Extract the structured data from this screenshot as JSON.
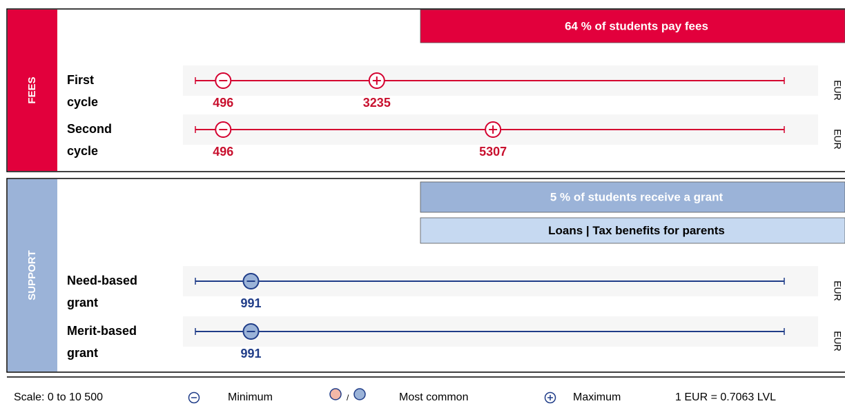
{
  "scale": {
    "min": 0,
    "max": 10500
  },
  "sections": [
    {
      "label": "FEES",
      "color": "#e2003c",
      "mark_color": "#d4002f",
      "number_color": "#c8102e",
      "filled": false,
      "banners": [
        {
          "text": "64 % of students pay fees",
          "fill": "#e2003c",
          "text_color": "#ffffff"
        }
      ],
      "rows": [
        {
          "label": [
            "First",
            "cycle"
          ],
          "unit": "EUR",
          "min": 496,
          "max": 3235
        },
        {
          "label": [
            "Second",
            "cycle"
          ],
          "unit": "EUR",
          "min": 496,
          "max": 5307
        }
      ]
    },
    {
      "label": "SUPPORT",
      "color": "#9bb3d8",
      "mark_color": "#1f3c88",
      "number_color": "#1f3c88",
      "filled": true,
      "banners": [
        {
          "text": "5 % of students receive a grant",
          "fill": "#9bb3d8",
          "text_color": "#ffffff"
        },
        {
          "text": "Loans | Tax benefits for parents",
          "fill": "#c6d9f1",
          "text_color": "#000000"
        }
      ],
      "rows": [
        {
          "label": [
            "Need-based",
            "grant"
          ],
          "unit": "EUR",
          "min": 991
        },
        {
          "label": [
            "Merit-based",
            "grant"
          ],
          "unit": "EUR",
          "min": 991
        }
      ]
    }
  ],
  "legend": {
    "scale": "Scale: 0 to 10 500",
    "minimum": "Minimum",
    "separator": "/",
    "most_common": "Most common",
    "maximum": "Maximum",
    "rate": "1 EUR = 0.7063 LVL"
  }
}
